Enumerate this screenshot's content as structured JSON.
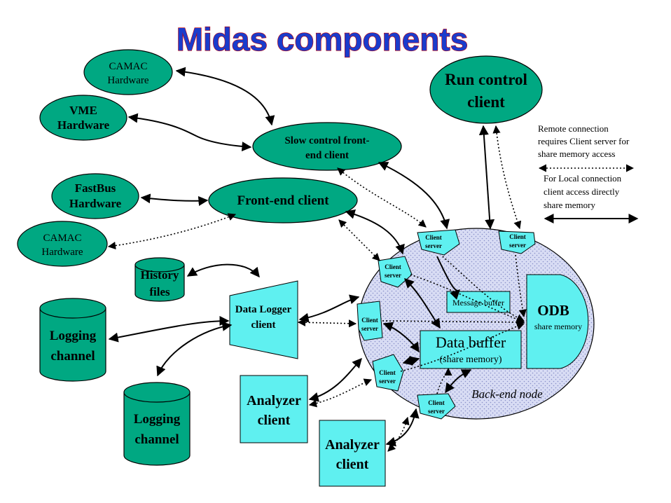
{
  "title": "Midas components",
  "nodes": {
    "camac_hw_1": [
      "CAMAC",
      "Hardware"
    ],
    "vme_hw": [
      "VME",
      "Hardware"
    ],
    "fastbus_hw": [
      "FastBus",
      "Hardware"
    ],
    "camac_hw_2": [
      "CAMAC",
      "Hardware"
    ],
    "slow_control": [
      "Slow control front-",
      "end client"
    ],
    "frontend": "Front-end client",
    "run_control": [
      "Run control",
      "client"
    ],
    "history": [
      "History",
      "files"
    ],
    "logging_1": [
      "Logging",
      "channel"
    ],
    "logging_2": [
      "Logging",
      "channel"
    ],
    "data_logger": [
      "Data Logger",
      "client"
    ],
    "analyzer_1": [
      "Analyzer",
      "client"
    ],
    "analyzer_2": [
      "Analyzer",
      "client"
    ],
    "client_server": [
      "Client",
      "server"
    ],
    "message_buffer": "Message buffer",
    "data_buffer": "Data buffer",
    "data_buffer_sub": "(share memory)",
    "odb": "ODB",
    "odb_sub": "share memory",
    "backend_label": "Back-end node"
  },
  "legend": {
    "remote": [
      "Remote connection",
      "requires Client server for",
      "share memory access"
    ],
    "local": [
      "For Local connection",
      "client access directly",
      "share memory"
    ]
  },
  "colors": {
    "teal_node": "#00a882",
    "cyan_node": "#5ff0f0",
    "backend_fill": "#d8dcf4",
    "title_fill": "#1a3ccc",
    "title_outline": "#c80000"
  }
}
